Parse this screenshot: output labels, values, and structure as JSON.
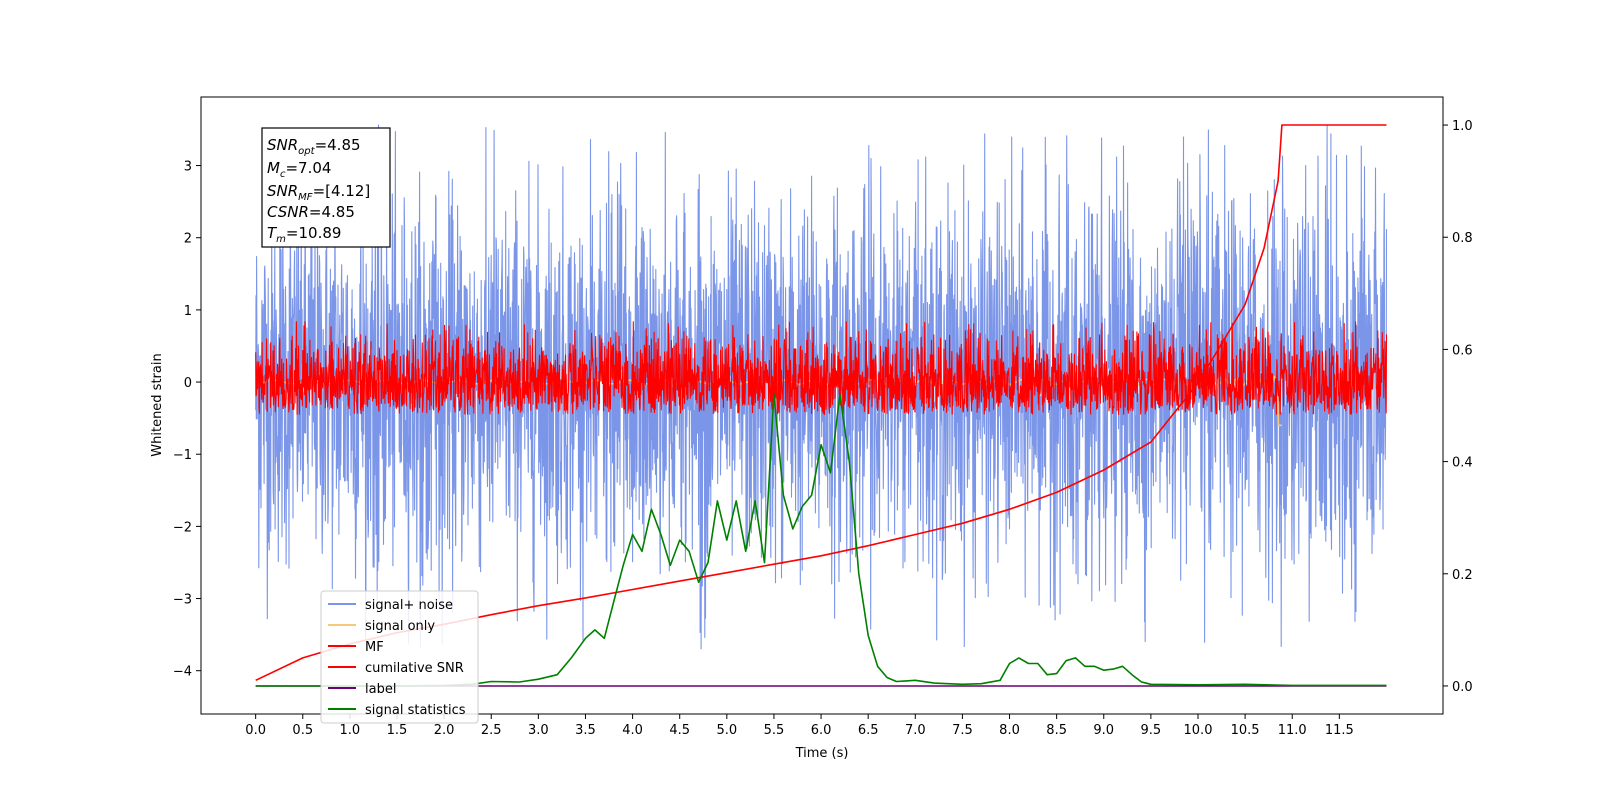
{
  "chart_data": {
    "type": "line",
    "xlabel": "Time (s)",
    "ylabel": "Whitened strain",
    "ylabel_right": "",
    "xlim": [
      -0.58,
      12.6
    ],
    "ylim": [
      -4.6,
      3.95
    ],
    "ylim_right": [
      -0.05,
      1.05
    ],
    "x_ticks": [
      "0.0",
      "0.5",
      "1.0",
      "1.5",
      "2.0",
      "2.5",
      "3.0",
      "3.5",
      "4.0",
      "4.5",
      "5.0",
      "5.5",
      "6.0",
      "6.5",
      "7.0",
      "7.5",
      "8.0",
      "8.5",
      "9.0",
      "9.5",
      "10.0",
      "10.5",
      "11.0",
      "11.5"
    ],
    "y_ticks": [
      "−4",
      "−3",
      "−2",
      "−1",
      "0",
      "1",
      "2",
      "3"
    ],
    "y_ticks_right": [
      "0.0",
      "0.2",
      "0.4",
      "0.6",
      "0.8",
      "1.0"
    ],
    "grid": false,
    "legend_position": "lower-left",
    "info_box": {
      "snr_opt": {
        "base": "SNR",
        "sub": "opt",
        "value": "=4.85"
      },
      "mc": {
        "base": "M",
        "sub": "c",
        "value": "=7.04"
      },
      "snr_mf": {
        "base": "SNR",
        "sub": "MF",
        "value": "=[4.12]"
      },
      "csnr": {
        "base": "CSNR",
        "sub": "",
        "value": "=4.85"
      },
      "tm": {
        "base": "T",
        "sub": "m",
        "value": "=10.89"
      }
    },
    "series": [
      {
        "name": "signal+ noise",
        "color": "#7b96e8",
        "axis": "left",
        "kind": "noise",
        "x_range": [
          0,
          12
        ],
        "amplitude": 1.25,
        "max": 3.58,
        "min": -3.7
      },
      {
        "name": "signal only",
        "color": "#f5c97a",
        "axis": "left",
        "kind": "chirp",
        "x_range": [
          0,
          10.89
        ],
        "min": -0.6,
        "max": 0.3
      },
      {
        "name": "MF",
        "color": "#ff0000",
        "axis": "left",
        "kind": "noise",
        "x_range": [
          0,
          12
        ],
        "amplitude": 0.35,
        "max": 0.85,
        "min": -0.45
      },
      {
        "name": "cumilative SNR",
        "color": "#ff0000",
        "axis": "right",
        "x": [
          0.0,
          0.5,
          1.0,
          1.5,
          2.0,
          2.5,
          3.0,
          3.5,
          4.0,
          4.5,
          5.0,
          5.5,
          6.0,
          6.5,
          7.0,
          7.5,
          8.0,
          8.5,
          9.0,
          9.5,
          10.0,
          10.5,
          10.7,
          10.85,
          10.89,
          11.0,
          11.5,
          12.0
        ],
        "y": [
          0.01,
          0.05,
          0.075,
          0.095,
          0.11,
          0.127,
          0.143,
          0.157,
          0.172,
          0.187,
          0.202,
          0.217,
          0.232,
          0.25,
          0.27,
          0.29,
          0.315,
          0.345,
          0.385,
          0.435,
          0.54,
          0.68,
          0.78,
          0.9,
          1.0,
          1.0,
          1.0,
          1.0
        ]
      },
      {
        "name": "label",
        "color": "#6a0072",
        "axis": "right",
        "x": [
          0,
          12
        ],
        "y": [
          0.0,
          0.0
        ]
      },
      {
        "name": "signal statistics",
        "color": "#008000",
        "axis": "right",
        "x": [
          0.0,
          0.5,
          1.0,
          1.5,
          2.0,
          2.3,
          2.5,
          2.8,
          3.0,
          3.2,
          3.35,
          3.5,
          3.6,
          3.7,
          3.8,
          3.9,
          4.0,
          4.1,
          4.2,
          4.3,
          4.4,
          4.5,
          4.6,
          4.7,
          4.8,
          4.9,
          5.0,
          5.1,
          5.2,
          5.3,
          5.4,
          5.5,
          5.6,
          5.7,
          5.8,
          5.9,
          6.0,
          6.1,
          6.2,
          6.3,
          6.4,
          6.5,
          6.6,
          6.7,
          6.8,
          6.9,
          7.0,
          7.2,
          7.5,
          7.7,
          7.9,
          8.0,
          8.1,
          8.2,
          8.3,
          8.4,
          8.5,
          8.6,
          8.7,
          8.8,
          8.9,
          9.0,
          9.1,
          9.2,
          9.3,
          9.4,
          9.5,
          10.0,
          10.5,
          11.0,
          12.0
        ],
        "y": [
          0.0,
          0.0,
          0.0,
          0.0,
          0.001,
          0.003,
          0.008,
          0.007,
          0.012,
          0.02,
          0.05,
          0.085,
          0.1,
          0.085,
          0.15,
          0.215,
          0.27,
          0.24,
          0.315,
          0.27,
          0.215,
          0.26,
          0.24,
          0.185,
          0.22,
          0.33,
          0.26,
          0.33,
          0.24,
          0.33,
          0.22,
          0.52,
          0.34,
          0.28,
          0.32,
          0.34,
          0.43,
          0.38,
          0.52,
          0.4,
          0.2,
          0.09,
          0.035,
          0.015,
          0.008,
          0.009,
          0.01,
          0.005,
          0.003,
          0.004,
          0.01,
          0.04,
          0.05,
          0.04,
          0.04,
          0.02,
          0.022,
          0.045,
          0.05,
          0.035,
          0.035,
          0.028,
          0.03,
          0.035,
          0.02,
          0.007,
          0.003,
          0.002,
          0.003,
          0.001,
          0.001
        ]
      }
    ]
  }
}
